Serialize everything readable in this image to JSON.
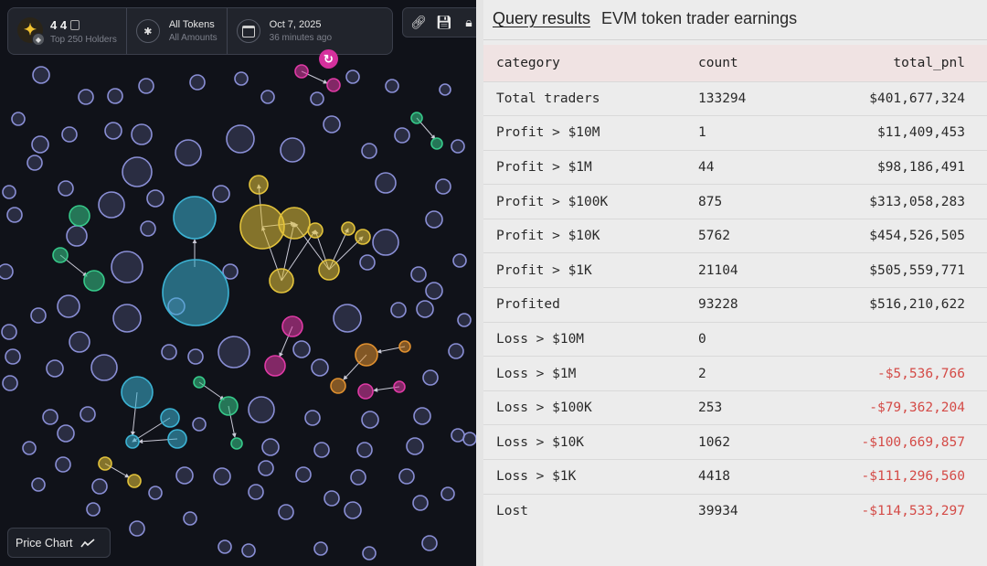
{
  "token": {
    "name": "4 4",
    "subtitle": "Top 250 Holders",
    "logo_icon": "doge-logo-icon",
    "chain_icon": "bnb-chain-icon"
  },
  "filters": {
    "tokens_label": "All Tokens",
    "amounts_label": "All Amounts"
  },
  "date": {
    "label": "Oct 7, 2025",
    "relative": "36 minutes ago"
  },
  "toolbar": {
    "icons": [
      "link-icon",
      "save-icon",
      "lock-icon"
    ]
  },
  "price_chart": {
    "label": "Price Chart"
  },
  "colors": {
    "cluster_yellow": "#e3c33b",
    "cluster_cyan": "#3cb3d4",
    "cluster_green": "#36c98a",
    "cluster_magenta": "#e03aa6",
    "cluster_orange": "#e0902f",
    "neutral_bubble": "#8a8fd6",
    "accent_refresh": "#d5309d",
    "negative": "#d44b47"
  },
  "results": {
    "link_label": "Query results",
    "title": "EVM token trader earnings",
    "columns": [
      "category",
      "count",
      "total_pnl"
    ],
    "rows": [
      {
        "category": "Total traders",
        "count": "133294",
        "total_pnl": "$401,677,324"
      },
      {
        "category": "Profit > $10M",
        "count": "1",
        "total_pnl": "$11,409,453"
      },
      {
        "category": "Profit > $1M",
        "count": "44",
        "total_pnl": "$98,186,491"
      },
      {
        "category": "Profit > $100K",
        "count": "875",
        "total_pnl": "$313,058,283"
      },
      {
        "category": "Profit > $10K",
        "count": "5762",
        "total_pnl": "$454,526,505"
      },
      {
        "category": "Profit > $1K",
        "count": "21104",
        "total_pnl": "$505,559,771"
      },
      {
        "category": "Profited",
        "count": "93228",
        "total_pnl": "$516,210,622"
      },
      {
        "category": "Loss > $10M",
        "count": "0",
        "total_pnl": ""
      },
      {
        "category": "Loss > $1M",
        "count": "2",
        "total_pnl": "-$5,536,766"
      },
      {
        "category": "Loss > $100K",
        "count": "253",
        "total_pnl": "-$79,362,204"
      },
      {
        "category": "Loss > $10K",
        "count": "1062",
        "total_pnl": "-$100,669,857"
      },
      {
        "category": "Loss > $1K",
        "count": "4418",
        "total_pnl": "-$111,296,560"
      },
      {
        "category": "Lost",
        "count": "39934",
        "total_pnl": "-$114,533,297"
      }
    ]
  }
}
